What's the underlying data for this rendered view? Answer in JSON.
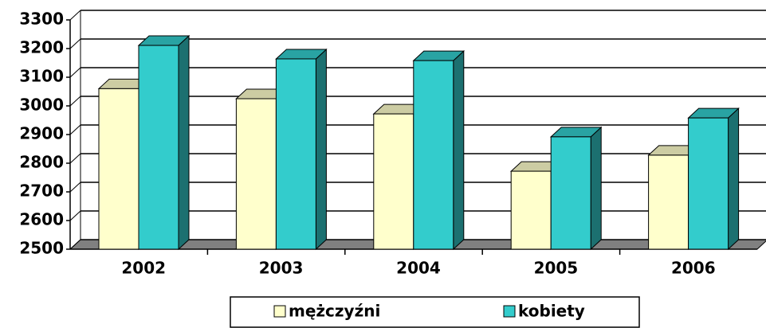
{
  "chart_data": {
    "type": "bar3d",
    "categories": [
      "2002",
      "2003",
      "2004",
      "2005",
      "2006"
    ],
    "series": [
      {
        "name": "mężczyźni",
        "color": "#ffffcc",
        "values": [
          3060,
          3025,
          2972,
          2772,
          2828
        ]
      },
      {
        "name": "kobiety",
        "color": "#33cccc",
        "values": [
          3211,
          3164,
          3158,
          2892,
          2958
        ]
      }
    ],
    "ylim": [
      2500,
      3300
    ],
    "yticks": [
      2500,
      2600,
      2700,
      2800,
      2900,
      3000,
      3100,
      3200,
      3300
    ],
    "grid": true,
    "legend": "bottom"
  }
}
